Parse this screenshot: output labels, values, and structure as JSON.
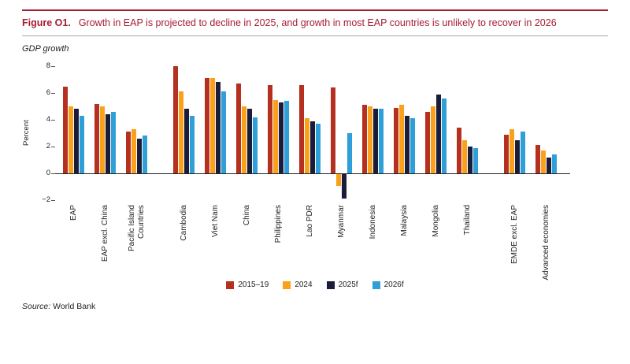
{
  "figure": {
    "label": "Figure O1.",
    "title": "Growth in EAP is projected to decline in 2025, and growth in most EAP countries is unlikely to recover in 2026",
    "subtitle": "GDP growth",
    "source_label": "Source:",
    "source_text": "World Bank"
  },
  "colors": {
    "accent_red": "#a61c33",
    "series_2015_19": "#b5301f",
    "series_2024": "#f9a11b",
    "series_2025f": "#1a1c3a",
    "series_2026f": "#2f9fd8"
  },
  "chart_data": {
    "type": "bar",
    "title": "GDP growth",
    "xlabel": "",
    "ylabel": "Percent",
    "ylim": [
      -2,
      8
    ],
    "yticks": [
      8,
      6,
      4,
      2,
      0,
      -2
    ],
    "grid": false,
    "legend_position": "bottom",
    "categories": [
      "EAP",
      "EAP excl. China",
      "Pacific Island Countries",
      "Cambodia",
      "Viet Nam",
      "China",
      "Philippines",
      "Lao PDR",
      "Myanmar",
      "Indonesia",
      "Malaysia",
      "Mongolia",
      "Thailand",
      "EMDE excl. EAP",
      "Advanced economies"
    ],
    "group_breaks": [
      2,
      12
    ],
    "series": [
      {
        "name": "2015–19",
        "color": "#b5301f",
        "values": [
          6.5,
          5.2,
          3.1,
          8.0,
          7.1,
          6.7,
          6.6,
          6.6,
          6.4,
          5.1,
          4.9,
          4.6,
          3.4,
          2.9,
          2.1
        ]
      },
      {
        "name": "2024",
        "color": "#f9a11b",
        "values": [
          5.0,
          5.0,
          3.3,
          6.1,
          7.1,
          5.0,
          5.5,
          4.1,
          -0.9,
          5.0,
          5.1,
          5.0,
          2.5,
          3.3,
          1.7
        ]
      },
      {
        "name": "2025f",
        "color": "#1a1c3a",
        "values": [
          4.8,
          4.4,
          2.6,
          4.8,
          6.8,
          4.8,
          5.3,
          3.9,
          -1.8,
          4.8,
          4.3,
          5.9,
          2.0,
          2.5,
          1.2
        ]
      },
      {
        "name": "2026f",
        "color": "#2f9fd8",
        "values": [
          4.3,
          4.6,
          2.8,
          4.3,
          6.1,
          4.2,
          5.4,
          3.7,
          3.0,
          4.8,
          4.1,
          5.6,
          1.9,
          3.1,
          1.4
        ]
      }
    ]
  }
}
